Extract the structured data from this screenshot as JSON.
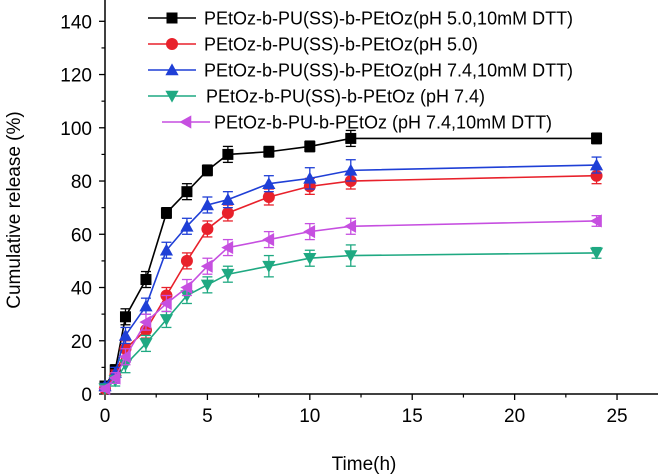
{
  "chart_data": {
    "type": "line",
    "title": "",
    "xlabel": "Time(h)",
    "ylabel": "Cumulative release (%)",
    "xlim": [
      0,
      27
    ],
    "ylim": [
      0,
      148
    ],
    "xticks": [
      0,
      5,
      10,
      15,
      20,
      25
    ],
    "yticks": [
      0,
      20,
      40,
      60,
      80,
      100,
      120,
      140
    ],
    "grid": false,
    "legend_position": "top-right",
    "x": [
      0,
      0.5,
      1,
      2,
      3,
      4,
      5,
      6,
      8,
      10,
      12,
      24
    ],
    "series": [
      {
        "name": "PEtOz-b-PU(SS)-b-PEtOz(pH 5.0,10mM DTT)",
        "color": "#000000",
        "marker": "square",
        "values": [
          3,
          9,
          29,
          43,
          68,
          76,
          84,
          90,
          91,
          93,
          96,
          96
        ],
        "errors": [
          1,
          2,
          3,
          3,
          2,
          3,
          2,
          3,
          2,
          2,
          3,
          2
        ]
      },
      {
        "name": "PEtOz-b-PU(SS)-b-PEtOz(pH 5.0)",
        "color": "#e8212b",
        "marker": "circle",
        "values": [
          2,
          7,
          17,
          24,
          37,
          50,
          62,
          68,
          74,
          78,
          80,
          82
        ],
        "errors": [
          1,
          2,
          3,
          3,
          3,
          3,
          3,
          3,
          3,
          3,
          3,
          3
        ]
      },
      {
        "name": "PEtOz-b-PU(SS)-b-PEtOz(pH 7.4,10mM DTT)",
        "color": "#1f3fd6",
        "marker": "triangle-up",
        "values": [
          3,
          8,
          22,
          33,
          54,
          63,
          71,
          73,
          79,
          81,
          84,
          86
        ],
        "errors": [
          1,
          2,
          3,
          3,
          3,
          3,
          3,
          3,
          3,
          4,
          4,
          3
        ]
      },
      {
        "name": "PEtOz-b-PU(SS)-b-PEtOz (pH 7.4)",
        "color": "#1fa982",
        "marker": "triangle-down",
        "values": [
          2,
          5,
          11,
          19,
          28,
          37,
          41,
          45,
          48,
          51,
          52,
          53
        ],
        "errors": [
          1,
          2,
          3,
          3,
          3,
          3,
          3,
          3,
          4,
          3,
          4,
          2
        ]
      },
      {
        "name": "PEtOz-b-PU-b-PEtOz (pH 7.4,10mM DTT)",
        "color": "#c64fe0",
        "marker": "triangle-left",
        "values": [
          2,
          6,
          14,
          27,
          34,
          40,
          48,
          55,
          58,
          61,
          63,
          65
        ],
        "errors": [
          1,
          2,
          3,
          3,
          3,
          3,
          3,
          3,
          3,
          3,
          3,
          2
        ]
      }
    ]
  }
}
